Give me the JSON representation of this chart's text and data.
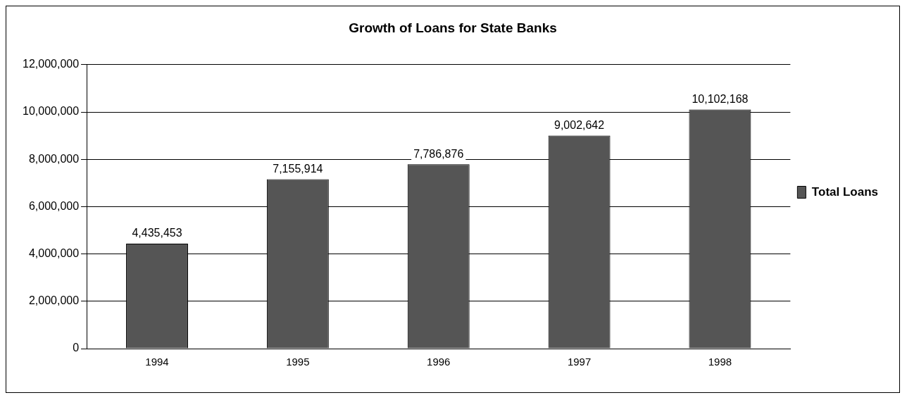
{
  "chart_data": {
    "type": "bar",
    "title": "Growth of Loans for State Banks",
    "categories": [
      "1994",
      "1995",
      "1996",
      "1997",
      "1998"
    ],
    "series": [
      {
        "name": "Total Loans",
        "color": "#555555",
        "values": [
          4435453,
          7155914,
          7786876,
          9002642,
          10102168
        ],
        "value_labels": [
          "4,435,453",
          "7,155,914",
          "7,786,876",
          "9,002,642",
          "10,102,168"
        ]
      }
    ],
    "ylim": [
      0,
      12000000
    ],
    "yticks": [
      {
        "value": 0,
        "label": "0"
      },
      {
        "value": 2000000,
        "label": "2,000,000"
      },
      {
        "value": 4000000,
        "label": "4,000,000"
      },
      {
        "value": 6000000,
        "label": "6,000,000"
      },
      {
        "value": 8000000,
        "label": "8,000,000"
      },
      {
        "value": 10000000,
        "label": "10,000,000"
      },
      {
        "value": 12000000,
        "label": "12,000,000"
      }
    ],
    "grid": "y",
    "legend": "right"
  }
}
